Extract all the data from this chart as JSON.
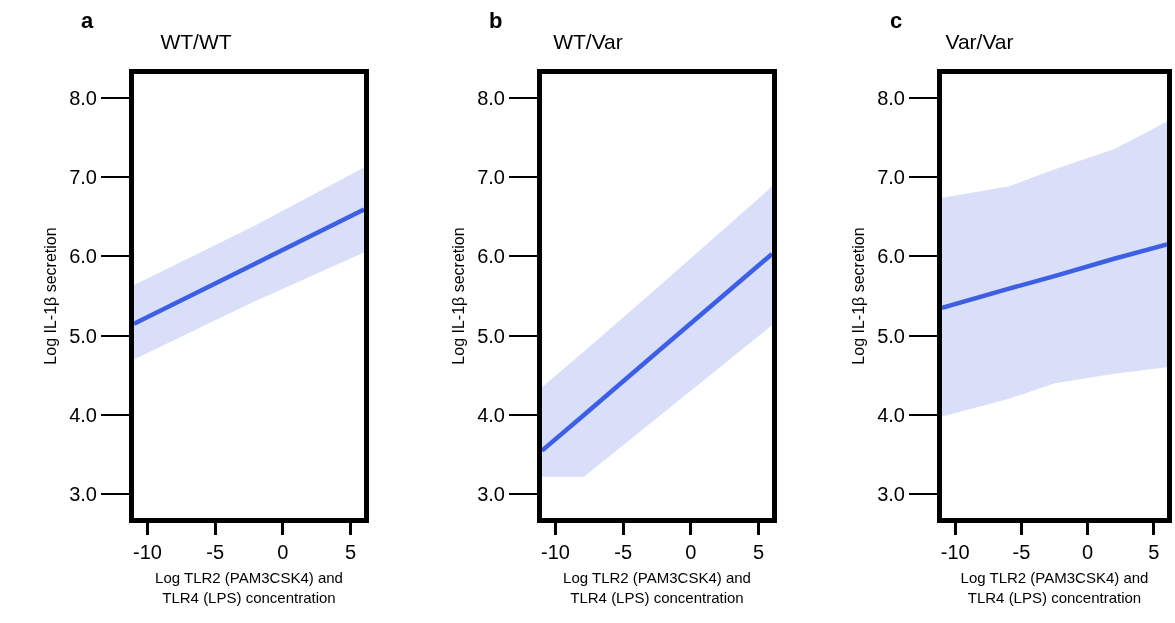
{
  "chart_data": [
    {
      "type": "line",
      "title": "WT/WT",
      "xlabel": "Log TLR2 (PAM3CSK4) and\nTLR4 (LPS) concentration",
      "ylabel": "Log IL-1β secretion",
      "annotations": [
        "a"
      ],
      "x": [
        -11,
        -2.5,
        6
      ],
      "series": [
        {
          "color": "#3f5fe3",
          "values": [
            5.15,
            5.87,
            6.59
          ],
          "lower": [
            4.7,
            5.4,
            6.05
          ],
          "upper": [
            5.64,
            6.35,
            7.12
          ]
        }
      ],
      "xlim": [
        -11,
        6
      ],
      "xticks": [
        -10,
        -5,
        0,
        5
      ],
      "ylim": [
        2.7,
        8.3
      ],
      "yticks": [
        {
          "value": 3,
          "label": "3.0"
        },
        {
          "value": 4,
          "label": "4.0"
        },
        {
          "value": 5,
          "label": "5.0"
        },
        {
          "value": 6,
          "label": "6.0"
        },
        {
          "value": 7,
          "label": "7.0"
        },
        {
          "value": 8,
          "label": "8.0"
        }
      ],
      "grid": false,
      "line_style": "solid"
    },
    {
      "type": "line",
      "title": "WT/Var",
      "xlabel": "Log TLR2 (PAM3CSK4) and\nTLR4 (LPS) concentration",
      "ylabel": "Log IL-1β secretion",
      "annotations": [
        "b"
      ],
      "x": [
        -11,
        -7.9,
        -2.5,
        6
      ],
      "series": [
        {
          "color": "#3f5fe3",
          "values": [
            3.55,
            4.0,
            4.79,
            6.03
          ],
          "lower": [
            3.22,
            3.22,
            3.96,
            5.13
          ],
          "upper": [
            4.35,
            4.8,
            5.6,
            6.88
          ]
        }
      ],
      "xlim": [
        -11,
        6
      ],
      "xticks": [
        -10,
        -5,
        0,
        5
      ],
      "ylim": [
        2.7,
        8.3
      ],
      "yticks": [
        {
          "value": 3,
          "label": "3.0"
        },
        {
          "value": 4,
          "label": "4.0"
        },
        {
          "value": 5,
          "label": "5.0"
        },
        {
          "value": 6,
          "label": "6.0"
        },
        {
          "value": 7,
          "label": "7.0"
        },
        {
          "value": 8,
          "label": "8.0"
        }
      ],
      "grid": false,
      "line_style": "solid"
    },
    {
      "type": "line",
      "title": "Var/Var",
      "xlabel": "Log TLR2 (PAM3CSK4) and\nTLR4 (LPS) concentration",
      "ylabel": "Log IL-1β secretion",
      "annotations": [
        "c"
      ],
      "x": [
        -11,
        -6,
        -2.5,
        2,
        6
      ],
      "series": [
        {
          "color": "#3f5fe3",
          "values": [
            5.35,
            5.59,
            5.75,
            5.97,
            6.15
          ],
          "lower": [
            3.98,
            4.2,
            4.4,
            4.52,
            4.6
          ],
          "upper": [
            6.74,
            6.88,
            7.1,
            7.35,
            7.7
          ]
        }
      ],
      "xlim": [
        -11,
        6
      ],
      "xticks": [
        -10,
        -5,
        0,
        5
      ],
      "ylim": [
        2.7,
        8.3
      ],
      "yticks": [
        {
          "value": 3,
          "label": "3.0"
        },
        {
          "value": 4,
          "label": "4.0"
        },
        {
          "value": 5,
          "label": "5.0"
        },
        {
          "value": 6,
          "label": "6.0"
        },
        {
          "value": 7,
          "label": "7.0"
        },
        {
          "value": 8,
          "label": "8.0"
        }
      ],
      "grid": false,
      "line_style": "solid"
    }
  ]
}
